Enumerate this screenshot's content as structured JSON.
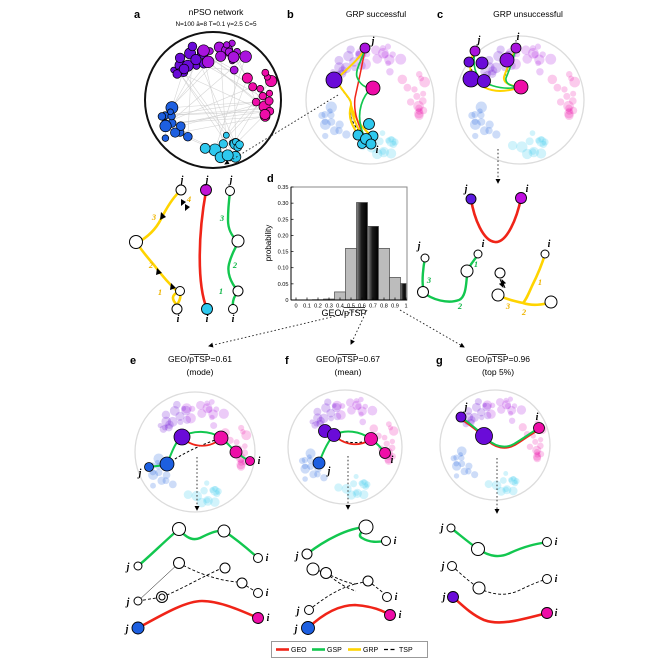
{
  "figure": {
    "labels": {
      "j": "j",
      "i": "i"
    },
    "steps": [
      "1",
      "2",
      "3",
      "4"
    ],
    "panels": {
      "a": {
        "letter": "a",
        "title": "nPSO network",
        "subtitle": "N=100 ā=8 T=0.1 γ=2.5 C=5"
      },
      "b": {
        "letter": "b",
        "title": "GRP successful"
      },
      "c": {
        "letter": "c",
        "title": "GRP unsuccessful"
      },
      "d": {
        "letter": "d",
        "ylabel": "probability",
        "xlabel": "GEO/pTSP"
      },
      "e": {
        "letter": "e",
        "title": "GEO/pTSP=0.61",
        "subtitle": "(mode)"
      },
      "f": {
        "letter": "f",
        "title": "GEO/pTSP=0.67",
        "subtitle": "(mean)"
      },
      "g": {
        "letter": "g",
        "title": "GEO/pTSP=0.96",
        "subtitle": "(top 5%)"
      }
    },
    "legend": {
      "items": [
        {
          "label": "GEO",
          "color": "#f02418",
          "style": "solid"
        },
        {
          "label": "GSP",
          "color": "#12c74f",
          "style": "solid"
        },
        {
          "label": "GRP",
          "color": "#ffd400",
          "style": "solid"
        },
        {
          "label": "TSP",
          "color": "#000000",
          "style": "dashed"
        }
      ]
    },
    "colors": {
      "violet": "#6a0bd8",
      "purple": "#a913dd",
      "magenta": "#ee0da8",
      "blue": "#1d5fe0",
      "cyan": "#2ec8ee",
      "geo": "#f02418",
      "gsp": "#12c74f",
      "grp": "#ffd400",
      "tsp": "#000000"
    }
  },
  "chart_data": {
    "type": "bar",
    "xlabel": "GEO/pTSP",
    "ylabel": "probability",
    "xlim": [
      0,
      1
    ],
    "ylim": [
      0,
      0.35
    ],
    "x_ticks": [
      0,
      0.1,
      0.2,
      0.3,
      0.4,
      0.5,
      0.6,
      0.7,
      0.8,
      0.9,
      1
    ],
    "x_tick_labels": [
      "0",
      "0.1",
      "0.2",
      "0.3",
      "0.4",
      "0.5",
      "0.6",
      "0.7",
      "0.8",
      "0.9",
      "1"
    ],
    "y_ticks": [
      0,
      0.05,
      0.1,
      0.15,
      0.2,
      0.25,
      0.3,
      0.35
    ],
    "y_tick_labels": [
      "0",
      "0.05",
      "0.10",
      "0.15",
      "0.20",
      "0.25",
      "0.30",
      "0.35"
    ],
    "bars": [
      {
        "from": 0.15,
        "to": 0.25,
        "value": 0.001,
        "highlight": false
      },
      {
        "from": 0.25,
        "to": 0.35,
        "value": 0.003,
        "highlight": false
      },
      {
        "from": 0.35,
        "to": 0.45,
        "value": 0.025,
        "highlight": false
      },
      {
        "from": 0.45,
        "to": 0.55,
        "value": 0.16,
        "highlight": false
      },
      {
        "from": 0.55,
        "to": 0.65,
        "value": 0.302,
        "highlight": true
      },
      {
        "from": 0.65,
        "to": 0.75,
        "value": 0.228,
        "highlight": true
      },
      {
        "from": 0.75,
        "to": 0.85,
        "value": 0.16,
        "highlight": false
      },
      {
        "from": 0.85,
        "to": 0.95,
        "value": 0.07,
        "highlight": false
      },
      {
        "from": 0.95,
        "to": 1.0,
        "value": 0.051,
        "highlight": true
      }
    ],
    "annotations": [
      {
        "value": 0.61,
        "label": "mode"
      },
      {
        "value": 0.67,
        "label": "mean"
      },
      {
        "value": 0.96,
        "label": "top 5%"
      }
    ]
  }
}
